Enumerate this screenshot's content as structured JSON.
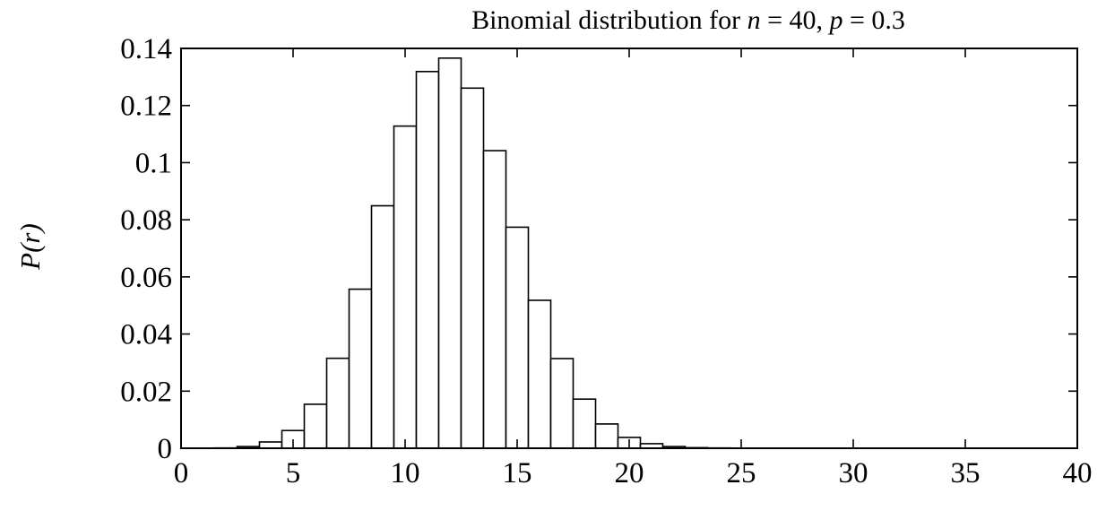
{
  "chart_data": {
    "type": "bar",
    "title": "Binomial distribution for n = 40, p = 0.3",
    "title_parts": {
      "prefix": "Binomial distribution for ",
      "n_symbol": "n",
      "n_eq": " = 40, ",
      "p_symbol": "p",
      "p_eq": " = 0.3"
    },
    "xlabel": "",
    "ylabel": "P(r)",
    "xlim": [
      0,
      40
    ],
    "ylim": [
      0,
      0.14
    ],
    "xticks": [
      "0",
      "5",
      "10",
      "15",
      "20",
      "25",
      "30",
      "35",
      "40"
    ],
    "yticks": [
      "0",
      "0.02",
      "0.04",
      "0.06",
      "0.08",
      "0.1",
      "0.12",
      "0.14"
    ],
    "grid": false,
    "x": [
      0,
      1,
      2,
      3,
      4,
      5,
      6,
      7,
      8,
      9,
      10,
      11,
      12,
      13,
      14,
      15,
      16,
      17,
      18,
      19,
      20,
      21,
      22,
      23,
      24,
      25,
      26,
      27,
      28,
      29,
      30,
      31,
      32,
      33,
      34,
      35,
      36,
      37,
      38,
      39,
      40
    ],
    "values": [
      0,
      0,
      0.0001,
      0.0006,
      0.0022,
      0.0062,
      0.0154,
      0.0315,
      0.0557,
      0.0849,
      0.1128,
      0.1319,
      0.1366,
      0.1261,
      0.1042,
      0.0774,
      0.0518,
      0.0314,
      0.0172,
      0.0085,
      0.0038,
      0.0016,
      0.0006,
      0.0002,
      0.0001,
      0,
      0,
      0,
      0,
      0,
      0,
      0,
      0,
      0,
      0,
      0,
      0,
      0,
      0,
      0,
      0
    ]
  }
}
